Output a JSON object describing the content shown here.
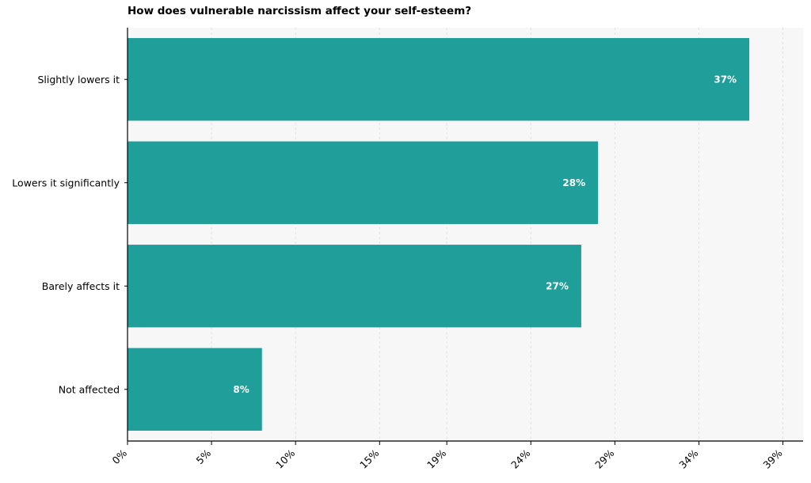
{
  "chart_data": {
    "type": "bar",
    "orientation": "horizontal",
    "title": "How does vulnerable narcissism affect your self-esteem?",
    "xlabel": "",
    "ylabel": "",
    "categories": [
      "Slightly lowers it",
      "Lowers it significantly",
      "Barely affects it",
      "Not affected"
    ],
    "values": [
      37,
      28,
      27,
      8
    ],
    "data_labels": [
      "37%",
      "28%",
      "27%",
      "8%"
    ],
    "xlim": [
      0,
      40.2
    ],
    "x_ticks": [
      0,
      5,
      10,
      15,
      19,
      24,
      29,
      34,
      39
    ],
    "x_tick_labels": [
      "0%",
      "5%",
      "10%",
      "15%",
      "19%",
      "24%",
      "29%",
      "34%",
      "39%"
    ],
    "grid": "vertical dashed",
    "legend": "none",
    "colors": {
      "bar": "#1f9e9a",
      "plot_background": "#f7f7f8",
      "data_label": "#ffffff",
      "axis": "#000000",
      "grid": "#dcdcdc"
    }
  }
}
